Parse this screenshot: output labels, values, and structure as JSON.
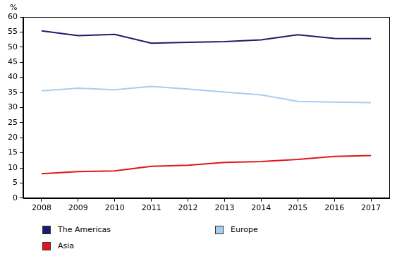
{
  "chart_data": {
    "type": "line",
    "y_label": "%",
    "categories": [
      "2008",
      "2009",
      "2010",
      "2011",
      "2012",
      "2013",
      "2014",
      "2015",
      "2016",
      "2017"
    ],
    "series": [
      {
        "name": "The Americas",
        "color": "#1b1d6e",
        "values": [
          55.4,
          53.8,
          54.2,
          51.3,
          51.6,
          51.8,
          52.4,
          54.1,
          52.9,
          52.8
        ]
      },
      {
        "name": "Europe",
        "color": "#a6cdf2",
        "values": [
          35.5,
          36.4,
          35.9,
          37.0,
          36.1,
          35.1,
          34.2,
          32.0,
          31.8,
          31.6
        ]
      },
      {
        "name": "Asia",
        "color": "#e3151d",
        "values": [
          8.1,
          8.8,
          9.0,
          10.5,
          10.9,
          11.8,
          12.1,
          12.8,
          13.8,
          14.1
        ]
      }
    ],
    "ylim": [
      0,
      60
    ],
    "yticks": [
      0,
      5,
      10,
      15,
      20,
      25,
      30,
      35,
      40,
      45,
      50,
      55,
      60
    ],
    "grid": false,
    "legend": "bottom"
  }
}
